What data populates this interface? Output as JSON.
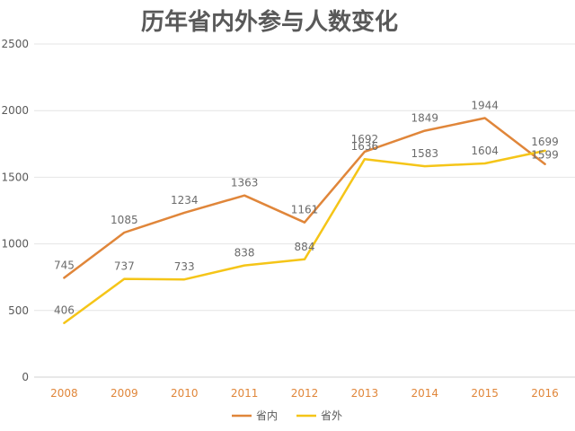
{
  "chart_data": {
    "type": "line",
    "title": "历年省内外参与人数变化",
    "categories": [
      "2008",
      "2009",
      "2010",
      "2011",
      "2012",
      "2013",
      "2014",
      "2015",
      "2016"
    ],
    "ylim": [
      0,
      2500
    ],
    "yticks": [
      0,
      500,
      1000,
      1500,
      2000,
      2500
    ],
    "grid": true,
    "legend_position": "bottom",
    "series": [
      {
        "name": "省内",
        "color": "#E0863A",
        "values": [
          745,
          1085,
          1234,
          1363,
          1161,
          1692,
          1849,
          1944,
          1599
        ]
      },
      {
        "name": "省外",
        "color": "#F5C518",
        "values": [
          406,
          737,
          733,
          838,
          884,
          1636,
          1583,
          1604,
          1699
        ]
      }
    ]
  }
}
